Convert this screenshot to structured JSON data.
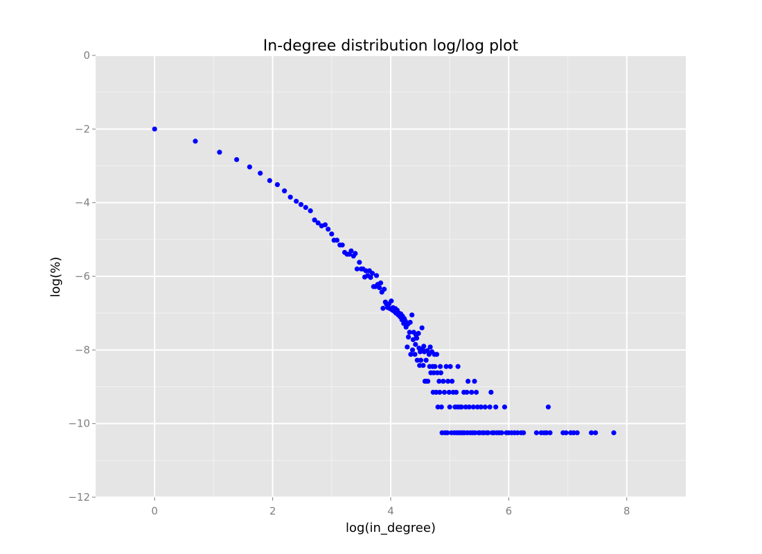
{
  "chart_data": {
    "type": "scatter",
    "title": "In-degree distribution log/log plot",
    "xlabel": "log(in_degree)",
    "ylabel": "log(%)",
    "xlim": [
      -1,
      9
    ],
    "ylim": [
      -12,
      0
    ],
    "xticks": [
      0,
      2,
      4,
      6,
      8
    ],
    "yticks": [
      0,
      -2,
      -4,
      -6,
      -8,
      -10,
      -12
    ],
    "xtick_labels": [
      "0",
      "2",
      "4",
      "6",
      "8"
    ],
    "ytick_labels": [
      "0",
      "−2",
      "−4",
      "−6",
      "−8",
      "−10",
      "−12"
    ],
    "grid": true,
    "colors": {
      "panel": "#e5e5e5",
      "grid_major": "#ffffff",
      "grid_minor": "#f2f2f2",
      "point": "#0000ff",
      "tick": "#7f7f7f"
    },
    "series": [
      {
        "points": [
          [
            0.0,
            -2.0
          ],
          [
            0.69,
            -2.33
          ],
          [
            1.1,
            -2.63
          ],
          [
            1.39,
            -2.83
          ],
          [
            1.61,
            -3.03
          ],
          [
            1.79,
            -3.2
          ],
          [
            1.95,
            -3.4
          ],
          [
            2.08,
            -3.51
          ],
          [
            2.2,
            -3.68
          ],
          [
            2.3,
            -3.85
          ],
          [
            2.4,
            -3.96
          ],
          [
            2.48,
            -4.05
          ],
          [
            2.56,
            -4.13
          ],
          [
            2.64,
            -4.22
          ],
          [
            2.71,
            -4.47
          ],
          [
            2.77,
            -4.55
          ],
          [
            2.83,
            -4.63
          ],
          [
            2.89,
            -4.6
          ],
          [
            2.94,
            -4.72
          ],
          [
            3.0,
            -4.85
          ],
          [
            3.04,
            -5.02
          ],
          [
            3.09,
            -5.02
          ],
          [
            3.14,
            -5.15
          ],
          [
            3.18,
            -5.15
          ],
          [
            3.22,
            -5.35
          ],
          [
            3.26,
            -5.4
          ],
          [
            3.3,
            -5.4
          ],
          [
            3.33,
            -5.31
          ],
          [
            3.37,
            -5.45
          ],
          [
            3.4,
            -5.38
          ],
          [
            3.43,
            -5.8
          ],
          [
            3.47,
            -5.62
          ],
          [
            3.5,
            -5.8
          ],
          [
            3.53,
            -5.8
          ],
          [
            3.56,
            -6.02
          ],
          [
            3.58,
            -5.85
          ],
          [
            3.61,
            -5.98
          ],
          [
            3.64,
            -5.85
          ],
          [
            3.66,
            -6.03
          ],
          [
            3.69,
            -5.92
          ],
          [
            3.71,
            -6.28
          ],
          [
            3.74,
            -6.28
          ],
          [
            3.76,
            -5.98
          ],
          [
            3.78,
            -6.22
          ],
          [
            3.81,
            -6.31
          ],
          [
            3.83,
            -6.18
          ],
          [
            3.85,
            -6.43
          ],
          [
            3.87,
            -6.87
          ],
          [
            3.89,
            -6.35
          ],
          [
            3.91,
            -6.7
          ],
          [
            3.93,
            -6.76
          ],
          [
            3.95,
            -6.85
          ],
          [
            3.97,
            -6.75
          ],
          [
            3.99,
            -6.88
          ],
          [
            4.01,
            -6.67
          ],
          [
            4.03,
            -6.92
          ],
          [
            4.04,
            -6.85
          ],
          [
            4.06,
            -6.95
          ],
          [
            4.08,
            -6.88
          ],
          [
            4.09,
            -7.0
          ],
          [
            4.11,
            -6.92
          ],
          [
            4.13,
            -7.05
          ],
          [
            4.14,
            -7.0
          ],
          [
            4.16,
            -7.1
          ],
          [
            4.17,
            -7.02
          ],
          [
            4.19,
            -7.18
          ],
          [
            4.2,
            -7.08
          ],
          [
            4.22,
            -7.28
          ],
          [
            4.23,
            -7.15
          ],
          [
            4.25,
            -7.22
          ],
          [
            4.26,
            -7.38
          ],
          [
            4.28,
            -7.92
          ],
          [
            4.29,
            -7.3
          ],
          [
            4.3,
            -7.65
          ],
          [
            4.32,
            -7.52
          ],
          [
            4.33,
            -7.25
          ],
          [
            4.34,
            -8.12
          ],
          [
            4.36,
            -7.05
          ],
          [
            4.37,
            -8.0
          ],
          [
            4.38,
            -7.72
          ],
          [
            4.39,
            -7.52
          ],
          [
            4.41,
            -8.12
          ],
          [
            4.42,
            -7.85
          ],
          [
            4.43,
            -7.6
          ],
          [
            4.44,
            -7.68
          ],
          [
            4.45,
            -8.28
          ],
          [
            4.47,
            -7.55
          ],
          [
            4.48,
            -7.95
          ],
          [
            4.49,
            -8.42
          ],
          [
            4.5,
            -8.05
          ],
          [
            4.51,
            -8.28
          ],
          [
            4.53,
            -7.4
          ],
          [
            4.54,
            -7.98
          ],
          [
            4.55,
            -8.42
          ],
          [
            4.56,
            -7.9
          ],
          [
            4.57,
            -8.05
          ],
          [
            4.58,
            -8.85
          ],
          [
            4.6,
            -8.28
          ],
          [
            4.61,
            -8.85
          ],
          [
            4.62,
            -8.02
          ],
          [
            4.63,
            -8.85
          ],
          [
            4.65,
            -8.12
          ],
          [
            4.66,
            -8.45
          ],
          [
            4.67,
            -7.92
          ],
          [
            4.68,
            -8.62
          ],
          [
            4.7,
            -8.05
          ],
          [
            4.71,
            -8.45
          ],
          [
            4.72,
            -9.15
          ],
          [
            4.73,
            -8.62
          ],
          [
            4.74,
            -8.12
          ],
          [
            4.75,
            -8.45
          ],
          [
            4.77,
            -9.15
          ],
          [
            4.78,
            -8.12
          ],
          [
            4.79,
            -8.62
          ],
          [
            4.8,
            -9.55
          ],
          [
            4.82,
            -8.85
          ],
          [
            4.83,
            -9.15
          ],
          [
            4.84,
            -8.45
          ],
          [
            4.85,
            -8.62
          ],
          [
            4.86,
            -9.55
          ],
          [
            4.87,
            -10.25
          ],
          [
            4.89,
            -8.85
          ],
          [
            4.91,
            -9.15
          ],
          [
            4.92,
            -10.25
          ],
          [
            4.94,
            -8.45
          ],
          [
            4.96,
            -10.25
          ],
          [
            4.97,
            -8.85
          ],
          [
            4.99,
            -9.15
          ],
          [
            5.0,
            -9.55
          ],
          [
            5.01,
            -8.45
          ],
          [
            5.03,
            -10.25
          ],
          [
            5.04,
            -8.85
          ],
          [
            5.06,
            -9.15
          ],
          [
            5.08,
            -10.25
          ],
          [
            5.09,
            -9.55
          ],
          [
            5.11,
            -9.15
          ],
          [
            5.12,
            -10.25
          ],
          [
            5.13,
            -9.55
          ],
          [
            5.14,
            -8.45
          ],
          [
            5.16,
            -10.25
          ],
          [
            5.17,
            -9.55
          ],
          [
            5.19,
            -10.25
          ],
          [
            5.2,
            -9.55
          ],
          [
            5.22,
            -10.25
          ],
          [
            5.24,
            -9.15
          ],
          [
            5.25,
            -10.25
          ],
          [
            5.27,
            -9.55
          ],
          [
            5.29,
            -9.15
          ],
          [
            5.3,
            -10.25
          ],
          [
            5.31,
            -8.85
          ],
          [
            5.33,
            -9.55
          ],
          [
            5.35,
            -10.25
          ],
          [
            5.37,
            -9.15
          ],
          [
            5.39,
            -10.25
          ],
          [
            5.4,
            -9.55
          ],
          [
            5.42,
            -8.85
          ],
          [
            5.43,
            -10.25
          ],
          [
            5.45,
            -9.15
          ],
          [
            5.47,
            -9.55
          ],
          [
            5.49,
            -10.25
          ],
          [
            5.51,
            -10.25
          ],
          [
            5.53,
            -9.55
          ],
          [
            5.56,
            -10.25
          ],
          [
            5.58,
            -10.25
          ],
          [
            5.6,
            -9.55
          ],
          [
            5.63,
            -10.25
          ],
          [
            5.65,
            -10.25
          ],
          [
            5.68,
            -9.55
          ],
          [
            5.7,
            -9.15
          ],
          [
            5.72,
            -10.25
          ],
          [
            5.75,
            -10.25
          ],
          [
            5.78,
            -9.55
          ],
          [
            5.8,
            -10.25
          ],
          [
            5.84,
            -10.25
          ],
          [
            5.88,
            -10.25
          ],
          [
            5.93,
            -9.55
          ],
          [
            5.96,
            -10.25
          ],
          [
            6.0,
            -10.25
          ],
          [
            6.05,
            -10.25
          ],
          [
            6.1,
            -10.25
          ],
          [
            6.15,
            -10.25
          ],
          [
            6.21,
            -10.25
          ],
          [
            6.25,
            -10.25
          ],
          [
            6.47,
            -10.25
          ],
          [
            6.55,
            -10.25
          ],
          [
            6.6,
            -10.25
          ],
          [
            6.64,
            -10.25
          ],
          [
            6.67,
            -9.55
          ],
          [
            6.7,
            -10.25
          ],
          [
            6.92,
            -10.25
          ],
          [
            6.97,
            -10.25
          ],
          [
            7.05,
            -10.25
          ],
          [
            7.1,
            -10.25
          ],
          [
            7.16,
            -10.25
          ],
          [
            7.4,
            -10.25
          ],
          [
            7.47,
            -10.25
          ],
          [
            7.78,
            -10.25
          ]
        ]
      }
    ]
  }
}
